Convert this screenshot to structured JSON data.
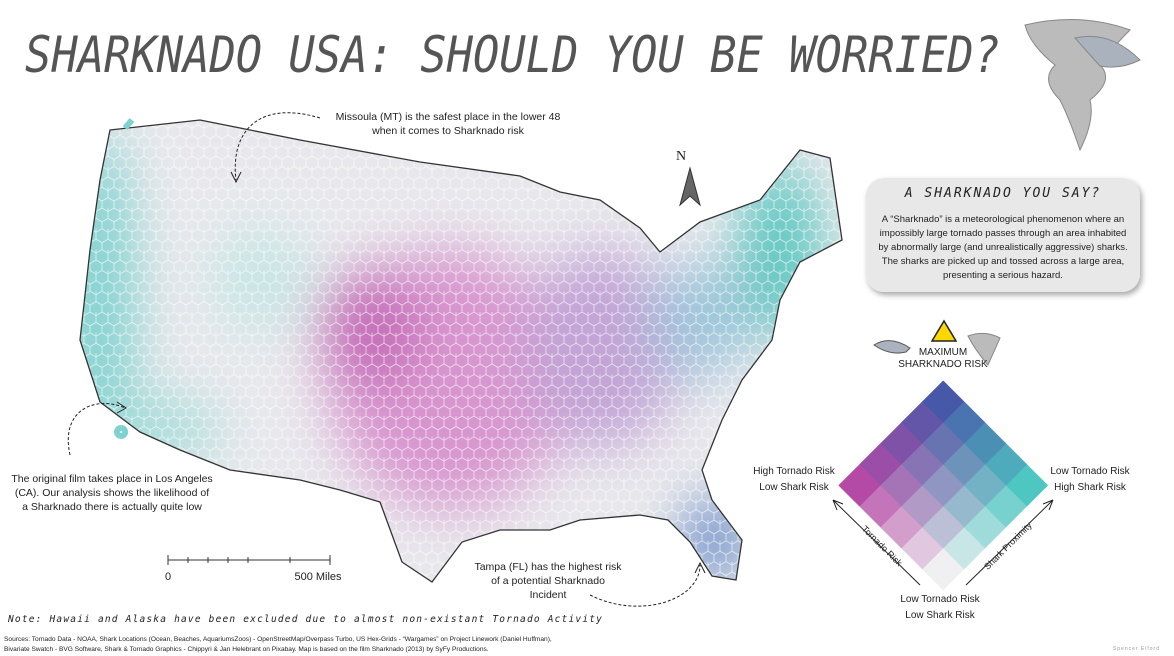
{
  "title": "SHARKNADO USA: SHOULD YOU BE WORRIED?",
  "north": "N",
  "annotations": {
    "missoula": [
      "Missoula (MT) is the safest place in the lower 48",
      "when it comes to Sharknado risk"
    ],
    "los_angeles": [
      "The original film takes place in Los Angeles",
      "(CA). Our analysis shows the likelihood of",
      "a Sharknado there is actually quite low"
    ],
    "tampa": [
      "Tampa (FL) has the highest risk",
      "of a potential  Sharknado",
      "Incident"
    ]
  },
  "info_box": {
    "title": "A SHARKNADO YOU SAY?",
    "body": [
      "A “Sharknado” is a meteorological phenomenon where an",
      "impossibly large tornado passes through an area inhabited",
      "by abnormally large (and unrealistically aggressive) sharks.",
      "The sharks are picked up and tossed across a large area,",
      "presenting a serious hazard."
    ]
  },
  "legend": {
    "top": [
      "MAXIMUM",
      "SHARKNADO RISK"
    ],
    "left": [
      "High Tornado Risk",
      "Low Shark Risk"
    ],
    "right": [
      "Low Tornado Risk",
      "High Shark Risk"
    ],
    "bottom": [
      "Low Tornado Risk",
      "Low Shark Risk"
    ],
    "x_axis": "Shark Proximity",
    "y_axis": "Tornado Risk",
    "corner_colors": {
      "low_low": "#f0f0f2",
      "high_tornado": "#b54aa6",
      "high_shark": "#4ec6c2",
      "high_high": "#4858a8"
    }
  },
  "scale_bar": {
    "start": "0",
    "end": "500 Miles"
  },
  "note": "Note: Hawaii and Alaska have been excluded due to almost non-existant Tornado Activity",
  "sources": [
    "Sources: Tornado Data - NOAA, Shark Locations (Ocean, Beaches, AquariumsZoos) - OpenStreetMap/Overpass Turbo, US Hex-Grids - “Wargames” on Project Linework (Daniel Huffman),",
    "Bivariate Swatch - BVG Software, Shark & Tornado Graphics - Chippyri & Jan Helebrant on Pixabay. Map is based on the film Sharknado (2013) by SyFy Productions."
  ],
  "credit": "Spencer Elford"
}
